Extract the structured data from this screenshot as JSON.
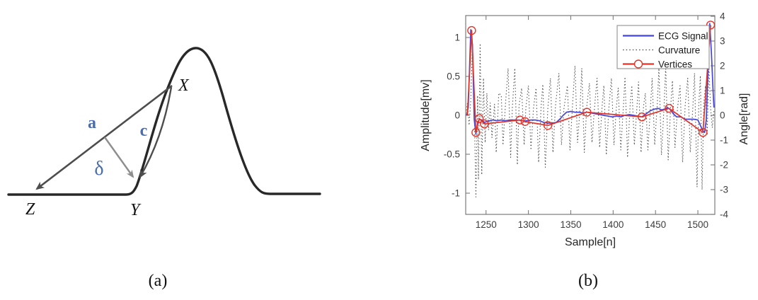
{
  "figure_a": {
    "caption": "(a)",
    "labels": {
      "a": "a",
      "c": "c",
      "delta": "δ",
      "x": "X",
      "y": "Y",
      "z": "Z"
    },
    "colors": {
      "curve": "#282828",
      "chord": "#4d4d4d",
      "delta_arrow": "#8e8e8e",
      "math_label": "#4a6db0",
      "point_label": "#141414"
    }
  },
  "figure_b": {
    "caption": "(b)"
  },
  "chart_data": {
    "type": "line",
    "title": "",
    "xlabel": "Sample[n]",
    "ylabel_left": "Amplitude[mv]",
    "ylabel_right": "Angle[rad]",
    "xlim": [
      1226,
      1520
    ],
    "ylim_left": [
      -1.3,
      1.3
    ],
    "ylim_right": [
      -4,
      4
    ],
    "x_ticks": [
      1250,
      1300,
      1350,
      1400,
      1450,
      1500
    ],
    "y_ticks_left": [
      -1,
      -0.5,
      0,
      0.5,
      1
    ],
    "y_ticks_right": [
      -4,
      -3,
      -2,
      -1,
      0,
      1,
      2,
      3,
      4
    ],
    "grid": false,
    "legend_position": "top-right",
    "colors": {
      "axis": "#7b7b7b",
      "tick_text": "#3d3d3d",
      "label_text": "#262626",
      "legend_border": "#909090"
    },
    "series": [
      {
        "name": "ECG Signal",
        "axis": "left",
        "style": "solid",
        "color": "#4545d8",
        "points": [
          [
            1227,
            0.0
          ],
          [
            1229,
            0.1
          ],
          [
            1232,
            1.1
          ],
          [
            1234,
            0.9
          ],
          [
            1236,
            -0.05
          ],
          [
            1238,
            -0.24
          ],
          [
            1240,
            -0.1
          ],
          [
            1242,
            -0.05
          ],
          [
            1245,
            -0.06
          ],
          [
            1248,
            -0.09
          ],
          [
            1251,
            -0.08
          ],
          [
            1254,
            -0.07
          ],
          [
            1258,
            -0.06
          ],
          [
            1263,
            -0.07
          ],
          [
            1268,
            -0.06
          ],
          [
            1273,
            -0.07
          ],
          [
            1278,
            -0.06
          ],
          [
            1283,
            -0.06
          ],
          [
            1288,
            -0.06
          ],
          [
            1293,
            -0.07
          ],
          [
            1298,
            -0.07
          ],
          [
            1303,
            -0.06
          ],
          [
            1308,
            -0.06
          ],
          [
            1313,
            -0.07
          ],
          [
            1318,
            -0.09
          ],
          [
            1323,
            -0.1
          ],
          [
            1328,
            -0.1
          ],
          [
            1333,
            -0.09
          ],
          [
            1337,
            -0.05
          ],
          [
            1341,
            0.0
          ],
          [
            1345,
            0.04
          ],
          [
            1350,
            0.05
          ],
          [
            1355,
            0.04
          ],
          [
            1360,
            0.04
          ],
          [
            1364,
            0.03
          ],
          [
            1369,
            0.04
          ],
          [
            1374,
            0.03
          ],
          [
            1379,
            0.02
          ],
          [
            1384,
            0.01
          ],
          [
            1389,
            0.0
          ],
          [
            1394,
            -0.01
          ],
          [
            1399,
            -0.02
          ],
          [
            1404,
            -0.01
          ],
          [
            1409,
            -0.02
          ],
          [
            1414,
            0.0
          ],
          [
            1419,
            0.01
          ],
          [
            1424,
            0.0
          ],
          [
            1429,
            -0.01
          ],
          [
            1434,
            -0.02
          ],
          [
            1439,
            0.02
          ],
          [
            1444,
            0.06
          ],
          [
            1449,
            0.08
          ],
          [
            1453,
            0.09
          ],
          [
            1457,
            0.07
          ],
          [
            1461,
            0.08
          ],
          [
            1464,
            0.1
          ],
          [
            1468,
            0.07
          ],
          [
            1471,
            0.02
          ],
          [
            1475,
            -0.02
          ],
          [
            1480,
            -0.02
          ],
          [
            1485,
            -0.05
          ],
          [
            1490,
            -0.05
          ],
          [
            1495,
            -0.05
          ],
          [
            1500,
            -0.06
          ],
          [
            1503,
            -0.13
          ],
          [
            1506,
            -0.2
          ],
          [
            1508,
            -0.22
          ],
          [
            1510,
            -0.05
          ],
          [
            1512,
            0.6
          ],
          [
            1514,
            1.18
          ],
          [
            1516,
            0.8
          ],
          [
            1518,
            0.3
          ],
          [
            1519,
            0.1
          ]
        ]
      },
      {
        "name": "Curvature",
        "axis": "right",
        "style": "dotted",
        "color": "#4d4d4d",
        "points": [
          [
            1227,
            0.2
          ],
          [
            1228,
            0.5
          ],
          [
            1230,
            -0.4
          ],
          [
            1232,
            0.6
          ],
          [
            1234,
            2.9
          ],
          [
            1236,
            0.5
          ],
          [
            1238,
            -3.3
          ],
          [
            1240,
            0.8
          ],
          [
            1241,
            -2.6
          ],
          [
            1243,
            2.9
          ],
          [
            1245,
            -2.4
          ],
          [
            1247,
            1.5
          ],
          [
            1249,
            -1.1
          ],
          [
            1251,
            0.9
          ],
          [
            1253,
            -0.6
          ],
          [
            1255,
            0.5
          ],
          [
            1257,
            -0.9
          ],
          [
            1260,
            0.45
          ],
          [
            1262,
            -1.5
          ],
          [
            1265,
            0.9
          ],
          [
            1268,
            0.8
          ],
          [
            1270,
            -1.2
          ],
          [
            1273,
            0.5
          ],
          [
            1276,
            1.9
          ],
          [
            1279,
            -1.7
          ],
          [
            1281,
            0.3
          ],
          [
            1284,
            1.9
          ],
          [
            1287,
            -2.0
          ],
          [
            1289,
            0.4
          ],
          [
            1292,
            1.1
          ],
          [
            1295,
            -1.2
          ],
          [
            1297,
            0.3
          ],
          [
            1300,
            1.2
          ],
          [
            1303,
            -1.4
          ],
          [
            1306,
            0.3
          ],
          [
            1309,
            1.1
          ],
          [
            1312,
            -1.9
          ],
          [
            1315,
            0.4
          ],
          [
            1317,
            1.25
          ],
          [
            1320,
            -2.1
          ],
          [
            1323,
            0.3
          ],
          [
            1326,
            1.5
          ],
          [
            1329,
            -1.5
          ],
          [
            1332,
            0.4
          ],
          [
            1336,
            1.7
          ],
          [
            1339,
            -1.2
          ],
          [
            1342,
            0.3
          ],
          [
            1346,
            1.2
          ],
          [
            1349,
            -1.4
          ],
          [
            1352,
            0.4
          ],
          [
            1355,
            2.0
          ],
          [
            1358,
            -1.1
          ],
          [
            1361,
            0.3
          ],
          [
            1363,
            1.9
          ],
          [
            1366,
            -1.5
          ],
          [
            1369,
            0.4
          ],
          [
            1372,
            1.3
          ],
          [
            1375,
            -1.1
          ],
          [
            1378,
            0.3
          ],
          [
            1381,
            1.5
          ],
          [
            1384,
            -1.3
          ],
          [
            1387,
            0.4
          ],
          [
            1389,
            1.2
          ],
          [
            1392,
            -1.6
          ],
          [
            1395,
            0.3
          ],
          [
            1398,
            1.5
          ],
          [
            1401,
            -1.2
          ],
          [
            1404,
            0.4
          ],
          [
            1406,
            1.1
          ],
          [
            1409,
            -1.4
          ],
          [
            1412,
            0.3
          ],
          [
            1414,
            1.55
          ],
          [
            1417,
            -1.7
          ],
          [
            1420,
            0.4
          ],
          [
            1422,
            1.2
          ],
          [
            1425,
            -1.2
          ],
          [
            1428,
            0.3
          ],
          [
            1430,
            1.35
          ],
          [
            1433,
            -1.5
          ],
          [
            1436,
            0.4
          ],
          [
            1438,
            0.9
          ],
          [
            1441,
            -1.4
          ],
          [
            1444,
            0.3
          ],
          [
            1446,
            1.5
          ],
          [
            1449,
            -1.2
          ],
          [
            1452,
            0.4
          ],
          [
            1454,
            1.9
          ],
          [
            1457,
            -1.6
          ],
          [
            1460,
            0.3
          ],
          [
            1462,
            2.0
          ],
          [
            1465,
            -1.8
          ],
          [
            1468,
            0.4
          ],
          [
            1470,
            1.4
          ],
          [
            1473,
            -1.3
          ],
          [
            1476,
            0.3
          ],
          [
            1479,
            1.2
          ],
          [
            1482,
            -1.9
          ],
          [
            1485,
            0.4
          ],
          [
            1488,
            1.5
          ],
          [
            1491,
            -1.5
          ],
          [
            1494,
            0.3
          ],
          [
            1496,
            1.7
          ],
          [
            1499,
            -2.9
          ],
          [
            1501,
            0.4
          ],
          [
            1503,
            1.6
          ],
          [
            1505,
            -3.0
          ],
          [
            1507,
            0.5
          ],
          [
            1509,
            1.2
          ],
          [
            1511,
            -0.8
          ],
          [
            1513,
            2.0
          ],
          [
            1515,
            0.3
          ],
          [
            1517,
            -0.5
          ],
          [
            1519,
            0.2
          ]
        ]
      },
      {
        "name": "Vertices",
        "axis": "left",
        "style": "solid-circle-marker",
        "color": "#e0352b",
        "points": [
          [
            1228,
            0.0
          ],
          [
            1233,
            1.09
          ],
          [
            1238,
            -0.22
          ],
          [
            1242,
            -0.04
          ],
          [
            1248,
            -0.11
          ],
          [
            1290,
            -0.06
          ],
          [
            1296,
            -0.08
          ],
          [
            1323,
            -0.13
          ],
          [
            1369,
            0.04
          ],
          [
            1434,
            -0.02
          ],
          [
            1466,
            0.09
          ],
          [
            1506,
            -0.22
          ],
          [
            1515,
            1.16
          ]
        ],
        "marker_points": [
          [
            1233,
            1.09
          ],
          [
            1238,
            -0.22
          ],
          [
            1242,
            -0.04
          ],
          [
            1248,
            -0.11
          ],
          [
            1290,
            -0.06
          ],
          [
            1296,
            -0.08
          ],
          [
            1323,
            -0.13
          ],
          [
            1369,
            0.04
          ],
          [
            1434,
            -0.02
          ],
          [
            1466,
            0.09
          ],
          [
            1506,
            -0.22
          ],
          [
            1515,
            1.16
          ]
        ]
      }
    ]
  }
}
